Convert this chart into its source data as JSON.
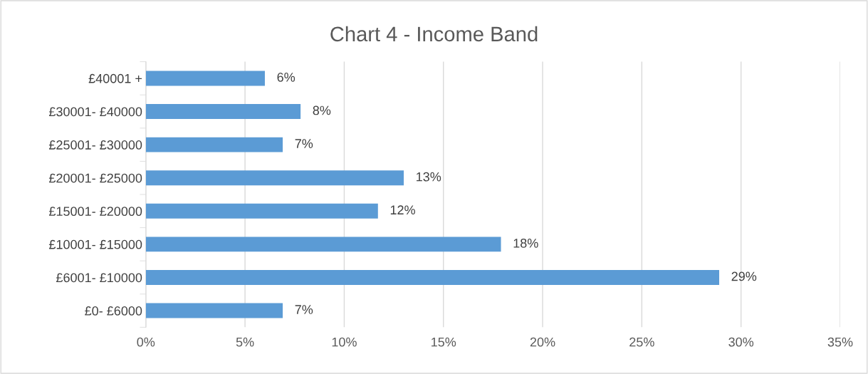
{
  "chart_data": {
    "type": "bar",
    "orientation": "horizontal",
    "title": "Chart 4 - Income Band",
    "categories": [
      "£40001 +",
      "£30001- £40000",
      "£25001- £30000",
      "£20001- £25000",
      "£15001- £20000",
      "£10001- £15000",
      "£6001- £10000",
      "£0- £6000"
    ],
    "values": [
      6.0,
      7.8,
      6.9,
      13.0,
      11.7,
      17.9,
      28.9,
      6.9
    ],
    "value_labels": [
      "6%",
      "8%",
      "7%",
      "13%",
      "12%",
      "18%",
      "29%",
      "7%"
    ],
    "color": "#5b9bd5",
    "xlim": [
      0,
      35
    ],
    "xticks": [
      {
        "value": 0,
        "label": "0%"
      },
      {
        "value": 5,
        "label": "5%"
      },
      {
        "value": 10,
        "label": "10%"
      },
      {
        "value": 15,
        "label": "15%"
      },
      {
        "value": 20,
        "label": "20%"
      },
      {
        "value": 25,
        "label": "25%"
      },
      {
        "value": 30,
        "label": "30%"
      },
      {
        "value": 35,
        "label": "35%"
      }
    ],
    "grid": "x",
    "legend": false
  }
}
